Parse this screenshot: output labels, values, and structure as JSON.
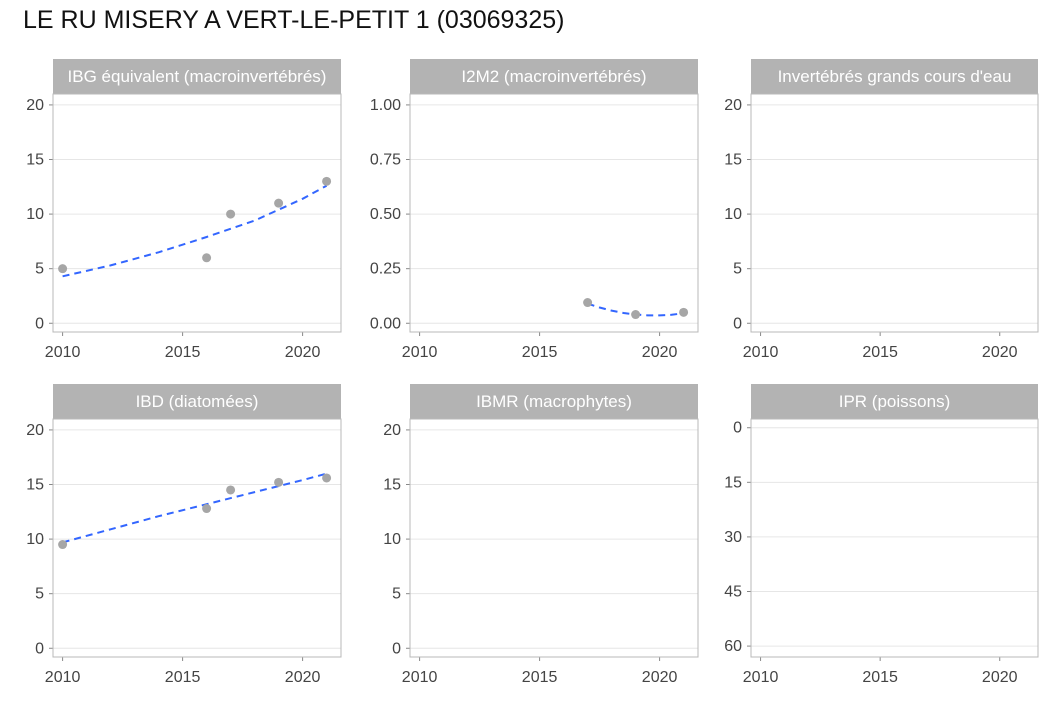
{
  "title": "LE RU MISERY A VERT-LE-PETIT 1 (03069325)",
  "colors": {
    "point": "#a6a6a6",
    "trend": "#3366ff",
    "header_bg": "#b3b3b3",
    "grid": "#e6e6e6",
    "border": "#b8b8b8"
  },
  "chart_data": [
    {
      "type": "scatter",
      "title": "IBG équivalent (macroinvertébrés)",
      "xlim": [
        2009.6,
        2021.6
      ],
      "ylim": [
        -0.8,
        21
      ],
      "xticks": [
        2010,
        2015,
        2020
      ],
      "yticks": [
        0,
        5,
        10,
        15,
        20
      ],
      "ytick_labels": [
        "0",
        "5",
        "10",
        "15",
        "20"
      ],
      "y_reversed": false,
      "points": {
        "x": [
          2010,
          2016,
          2017,
          2019,
          2021
        ],
        "y": [
          5,
          6,
          10,
          11,
          13
        ]
      },
      "trend": {
        "style": "dashed",
        "x": [
          2010,
          2012,
          2014,
          2016,
          2018,
          2020,
          2021
        ],
        "y": [
          4.3,
          5.3,
          6.5,
          7.9,
          9.4,
          11.4,
          12.6
        ]
      }
    },
    {
      "type": "scatter",
      "title": "I2M2 (macroinvertébrés)",
      "xlim": [
        2009.6,
        2021.6
      ],
      "ylim": [
        -0.04,
        1.05
      ],
      "xticks": [
        2010,
        2015,
        2020
      ],
      "yticks": [
        0,
        0.25,
        0.5,
        0.75,
        1
      ],
      "ytick_labels": [
        "0.00",
        "0.25",
        "0.50",
        "0.75",
        "1.00"
      ],
      "y_reversed": false,
      "points": {
        "x": [
          2017,
          2019,
          2021
        ],
        "y": [
          0.095,
          0.04,
          0.05
        ]
      },
      "trend": {
        "style": "dashed",
        "x": [
          2017,
          2017.5,
          2018,
          2018.5,
          2019,
          2019.5,
          2020,
          2020.5,
          2021
        ],
        "y": [
          0.09,
          0.072,
          0.058,
          0.047,
          0.04,
          0.036,
          0.036,
          0.039,
          0.046
        ]
      }
    },
    {
      "type": "scatter",
      "title": "Invertébrés grands cours d'eau",
      "xlim": [
        2009.6,
        2021.6
      ],
      "ylim": [
        -0.8,
        21
      ],
      "xticks": [
        2010,
        2015,
        2020
      ],
      "yticks": [
        0,
        5,
        10,
        15,
        20
      ],
      "ytick_labels": [
        "0",
        "5",
        "10",
        "15",
        "20"
      ],
      "y_reversed": false,
      "points": {
        "x": [],
        "y": []
      },
      "trend": null
    },
    {
      "type": "scatter",
      "title": "IBD (diatomées)",
      "xlim": [
        2009.6,
        2021.6
      ],
      "ylim": [
        -0.8,
        21
      ],
      "xticks": [
        2010,
        2015,
        2020
      ],
      "yticks": [
        0,
        5,
        10,
        15,
        20
      ],
      "ytick_labels": [
        "0",
        "5",
        "10",
        "15",
        "20"
      ],
      "y_reversed": false,
      "points": {
        "x": [
          2010,
          2016,
          2017,
          2019,
          2021
        ],
        "y": [
          9.5,
          12.8,
          14.5,
          15.2,
          15.6
        ]
      },
      "trend": {
        "style": "dashed",
        "x": [
          2010,
          2012,
          2014,
          2016,
          2018,
          2020,
          2021
        ],
        "y": [
          9.7,
          10.9,
          12.1,
          13.2,
          14.3,
          15.4,
          16.0
        ]
      }
    },
    {
      "type": "scatter",
      "title": "IBMR (macrophytes)",
      "xlim": [
        2009.6,
        2021.6
      ],
      "ylim": [
        -0.8,
        21
      ],
      "xticks": [
        2010,
        2015,
        2020
      ],
      "yticks": [
        0,
        5,
        10,
        15,
        20
      ],
      "ytick_labels": [
        "0",
        "5",
        "10",
        "15",
        "20"
      ],
      "y_reversed": false,
      "points": {
        "x": [],
        "y": []
      },
      "trend": null
    },
    {
      "type": "scatter",
      "title": "IPR (poissons)",
      "xlim": [
        2009.6,
        2021.6
      ],
      "ylim": [
        -2.4,
        63
      ],
      "xticks": [
        2010,
        2015,
        2020
      ],
      "yticks": [
        0,
        15,
        30,
        45,
        60
      ],
      "ytick_labels": [
        "0",
        "15",
        "30",
        "45",
        "60"
      ],
      "y_reversed": true,
      "points": {
        "x": [],
        "y": []
      },
      "trend": null
    }
  ]
}
